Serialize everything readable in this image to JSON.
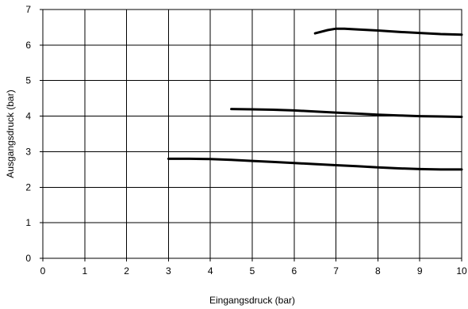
{
  "chart_data": {
    "type": "line",
    "title": "",
    "xlabel": "Eingangsdruck (bar)",
    "ylabel": "Ausgangsdruck (bar)",
    "xlim": [
      0,
      10
    ],
    "ylim": [
      0,
      7
    ],
    "xticks": [
      "0",
      "1",
      "2",
      "3",
      "4",
      "5",
      "6",
      "7",
      "8",
      "9",
      "10"
    ],
    "yticks": [
      "0",
      "1",
      "2",
      "3",
      "4",
      "5",
      "6",
      "7"
    ],
    "grid": true,
    "legend": "none",
    "line_color": "#000000",
    "series": [
      {
        "x": [
          6.5,
          6.8,
          7.0,
          7.2,
          7.5,
          8.0,
          8.5,
          9.0,
          9.5,
          10.0
        ],
        "y": [
          6.33,
          6.42,
          6.46,
          6.46,
          6.44,
          6.41,
          6.37,
          6.34,
          6.31,
          6.29
        ]
      },
      {
        "x": [
          4.5,
          5.0,
          5.5,
          6.0,
          6.5,
          7.0,
          7.5,
          8.0,
          8.5,
          9.0,
          9.5,
          10.0
        ],
        "y": [
          4.2,
          4.19,
          4.18,
          4.16,
          4.13,
          4.1,
          4.07,
          4.04,
          4.02,
          4.0,
          3.99,
          3.98
        ]
      },
      {
        "x": [
          3.0,
          3.5,
          4.0,
          4.5,
          5.0,
          5.5,
          6.0,
          6.5,
          7.0,
          7.5,
          8.0,
          8.5,
          9.0,
          9.5,
          10.0
        ],
        "y": [
          2.8,
          2.8,
          2.79,
          2.77,
          2.74,
          2.71,
          2.68,
          2.65,
          2.62,
          2.59,
          2.56,
          2.53,
          2.51,
          2.5,
          2.5
        ]
      }
    ]
  }
}
